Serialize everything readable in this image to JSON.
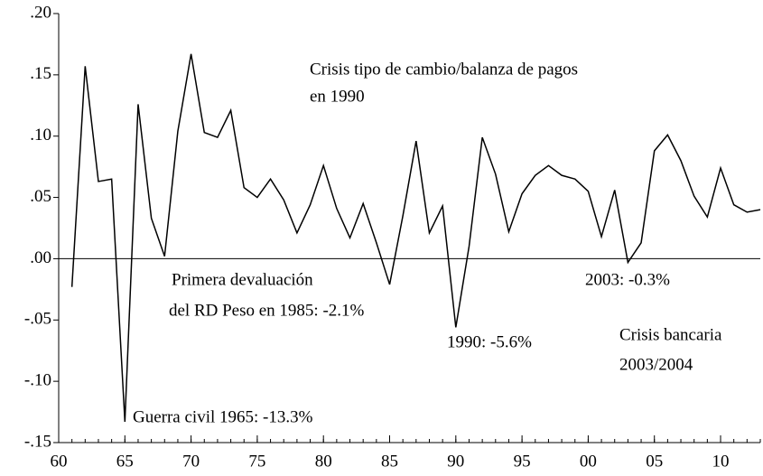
{
  "chart_data": {
    "type": "line",
    "x": [
      1961,
      1962,
      1963,
      1964,
      1965,
      1966,
      1967,
      1968,
      1969,
      1970,
      1971,
      1972,
      1973,
      1974,
      1975,
      1976,
      1977,
      1978,
      1979,
      1980,
      1981,
      1982,
      1983,
      1984,
      1985,
      1986,
      1987,
      1988,
      1989,
      1990,
      1991,
      1992,
      1993,
      1994,
      1995,
      1996,
      1997,
      1998,
      1999,
      2000,
      2001,
      2002,
      2003,
      2004,
      2005,
      2006,
      2007,
      2008,
      2009,
      2010,
      2011,
      2012,
      2013
    ],
    "values": [
      -0.023,
      0.157,
      0.063,
      0.065,
      -0.133,
      0.126,
      0.033,
      0.002,
      0.104,
      0.167,
      0.103,
      0.099,
      0.121,
      0.058,
      0.05,
      0.065,
      0.048,
      0.021,
      0.044,
      0.076,
      0.041,
      0.017,
      0.045,
      0.013,
      -0.021,
      0.035,
      0.096,
      0.021,
      0.043,
      -0.056,
      0.01,
      0.099,
      0.069,
      0.022,
      0.053,
      0.068,
      0.076,
      0.068,
      0.065,
      0.055,
      0.018,
      0.056,
      -0.003,
      0.013,
      0.088,
      0.101,
      0.08,
      0.051,
      0.034,
      0.074,
      0.044,
      0.038,
      0.04
    ],
    "color": "#000000",
    "xlim": [
      1960,
      2013
    ],
    "xticks": [
      {
        "value": 1960,
        "label": "60"
      },
      {
        "value": 1965,
        "label": "65"
      },
      {
        "value": 1970,
        "label": "70"
      },
      {
        "value": 1975,
        "label": "75"
      },
      {
        "value": 1980,
        "label": "80"
      },
      {
        "value": 1985,
        "label": "85"
      },
      {
        "value": 1990,
        "label": "90"
      },
      {
        "value": 1995,
        "label": "95"
      },
      {
        "value": 2000,
        "label": "00"
      },
      {
        "value": 2005,
        "label": "05"
      },
      {
        "value": 2010,
        "label": "10"
      }
    ],
    "ylim": [
      -0.15,
      0.2
    ],
    "yticks": [
      {
        "value": -0.15,
        "label": "-.15"
      },
      {
        "value": -0.1,
        "label": "-.10"
      },
      {
        "value": -0.05,
        "label": "-.05"
      },
      {
        "value": 0,
        "label": ".00"
      },
      {
        "value": 0.05,
        "label": ".05"
      },
      {
        "value": 0.1,
        "label": ".10"
      },
      {
        "value": 0.15,
        "label": ".15"
      },
      {
        "value": 0.2,
        "label": ".20"
      }
    ],
    "annotations": [
      "Crisis tipo de cambio/balanza de pagos",
      "en 1990",
      "Primera devaluación",
      "del RD Peso en 1985: -2.1%",
      "Guerra civil 1965: -13.3%",
      "1990: -5.6%",
      "2003: -0.3%",
      "Crisis bancaria",
      "2003/2004"
    ]
  }
}
